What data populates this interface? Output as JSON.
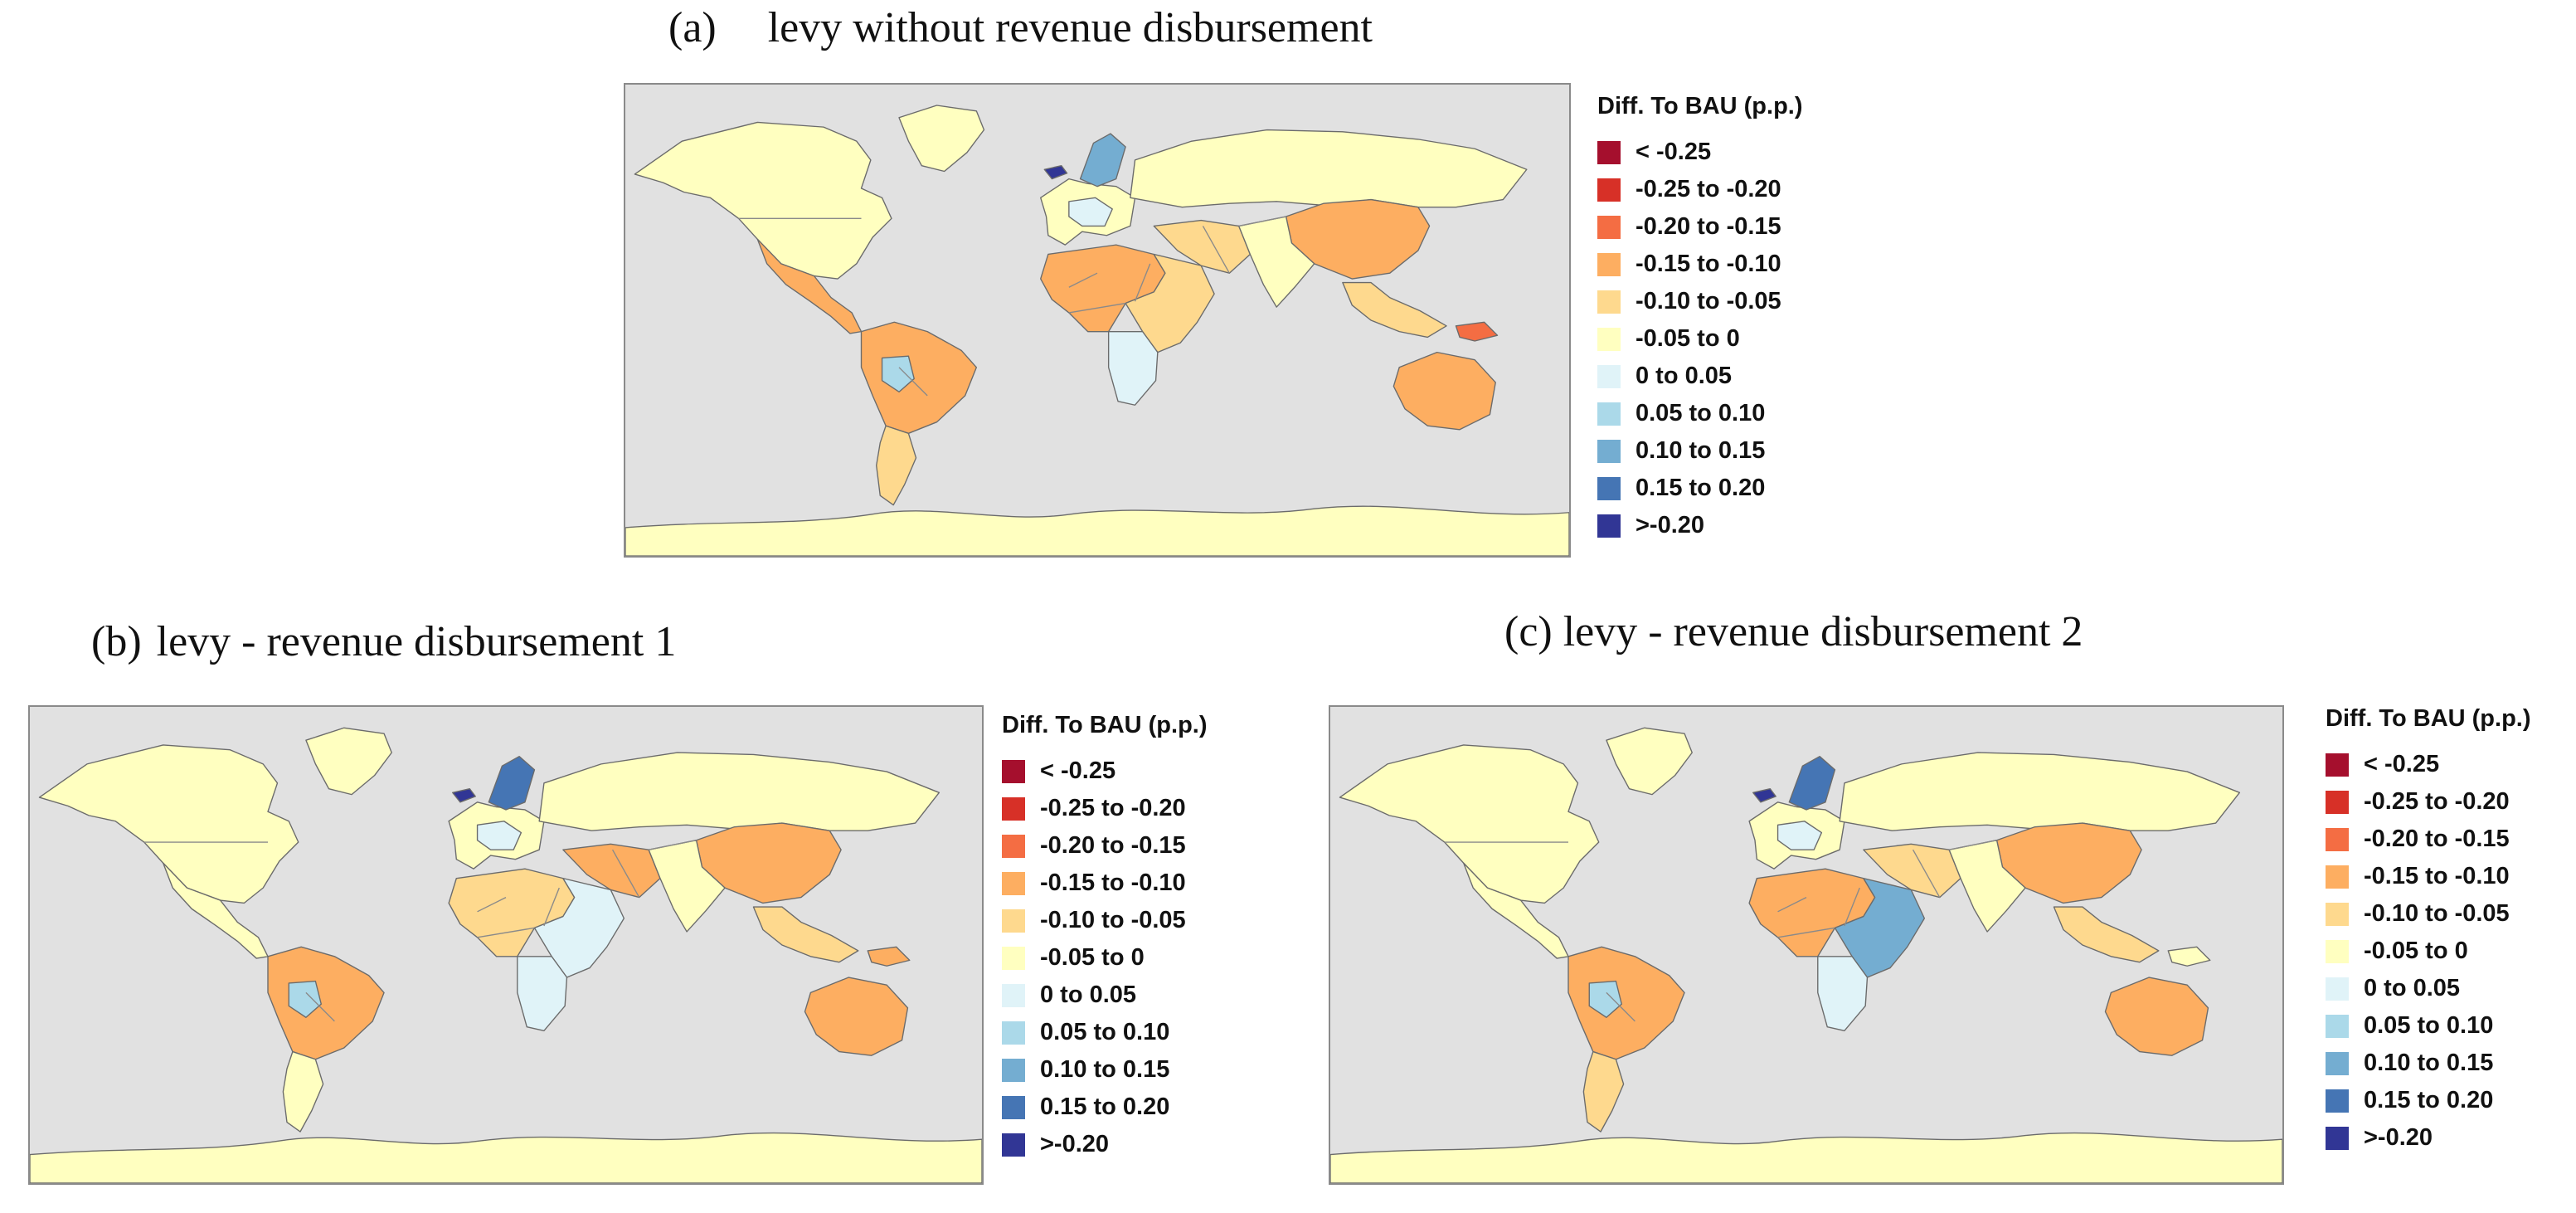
{
  "panels": [
    {
      "id": "a",
      "label": "(a)",
      "title": "levy without revenue disbursement"
    },
    {
      "id": "b",
      "label": "(b)",
      "title": "levy - revenue disbursement 1"
    },
    {
      "id": "c",
      "label": "(c) levy - revenue disbursement 2",
      "title": ""
    }
  ],
  "legend": {
    "title": "Diff. To BAU (p.p.)",
    "items": [
      {
        "label": "< -0.25",
        "color": "#a50f2d"
      },
      {
        "label": "-0.25 to -0.20",
        "color": "#d73027"
      },
      {
        "label": "-0.20 to -0.15",
        "color": "#f46d43"
      },
      {
        "label": "-0.15 to -0.10",
        "color": "#fdae61"
      },
      {
        "label": "-0.10 to -0.05",
        "color": "#fed98e"
      },
      {
        "label": "-0.05 to 0",
        "color": "#ffffc0"
      },
      {
        "label": "0 to 0.05",
        "color": "#e0f3f8"
      },
      {
        "label": "0.05 to 0.10",
        "color": "#abd9e9"
      },
      {
        "label": "0.10 to 0.15",
        "color": "#74add1"
      },
      {
        "label": "0.15 to 0.20",
        "color": "#4575b4"
      },
      {
        "label": ">-0.20",
        "color": "#313695"
      }
    ]
  },
  "map_colors": {
    "ocean": "#e1e1e1",
    "border": "#6b6b6b"
  },
  "map_regions": {
    "a": {
      "north_america": "-0.05 to 0",
      "mexico_central_america": "-0.15 to -0.10",
      "brazil_north_south_america": "-0.15 to -0.10",
      "bolivia": "0.05 to 0.10",
      "southern_cone": "-0.10 to -0.05",
      "greenland": "-0.05 to 0",
      "europe": "-0.05 to 0",
      "scandinavia": "0.10 to 0.15",
      "central_europe": "0 to 0.05",
      "russia_north_asia": "-0.05 to 0",
      "west_africa": "-0.15 to -0.10",
      "east_africa": "-0.10 to -0.05",
      "southern_africa": "0 to 0.05",
      "middle_east": "-0.10 to -0.05",
      "china": "-0.15 to -0.10",
      "india": "-0.05 to 0",
      "southeast_asia": "-0.10 to -0.05",
      "australia": "-0.15 to -0.10",
      "papua_new_guinea": "-0.20 to -0.15",
      "antarctica": "-0.05 to 0",
      "iceland": ">-0.20"
    },
    "b": {
      "north_america": "-0.05 to 0",
      "mexico_central_america": "-0.05 to 0",
      "brazil_north_south_america": "-0.15 to -0.10",
      "bolivia": "0.05 to 0.10",
      "southern_cone": "-0.05 to 0",
      "greenland": "-0.05 to 0",
      "europe": "-0.05 to 0",
      "scandinavia": "0.15 to 0.20",
      "central_europe": "0 to 0.05",
      "russia_north_asia": "-0.05 to 0",
      "west_africa": "-0.10 to -0.05",
      "east_africa": "0 to 0.05",
      "southern_africa": "0 to 0.05",
      "middle_east": "-0.15 to -0.10",
      "china": "-0.15 to -0.10",
      "india": "-0.05 to 0",
      "southeast_asia": "-0.10 to -0.05",
      "australia": "-0.15 to -0.10",
      "papua_new_guinea": "-0.15 to -0.10",
      "antarctica": "-0.05 to 0",
      "iceland": ">-0.20"
    },
    "c": {
      "north_america": "-0.05 to 0",
      "mexico_central_america": "-0.05 to 0",
      "brazil_north_south_america": "-0.15 to -0.10",
      "bolivia": "0.05 to 0.10",
      "southern_cone": "-0.10 to -0.05",
      "greenland": "-0.05 to 0",
      "europe": "-0.05 to 0",
      "scandinavia": "0.15 to 0.20",
      "central_europe": "0 to 0.05",
      "russia_north_asia": "-0.05 to 0",
      "west_africa": "-0.15 to -0.10",
      "east_africa": "0.10 to 0.15",
      "southern_africa": "0 to 0.05",
      "middle_east": "-0.10 to -0.05",
      "china": "-0.15 to -0.10",
      "india": "-0.05 to 0",
      "southeast_asia": "-0.10 to -0.05",
      "australia": "-0.15 to -0.10",
      "papua_new_guinea": "-0.05 to 0",
      "antarctica": "-0.05 to 0",
      "iceland": ">-0.20"
    }
  }
}
